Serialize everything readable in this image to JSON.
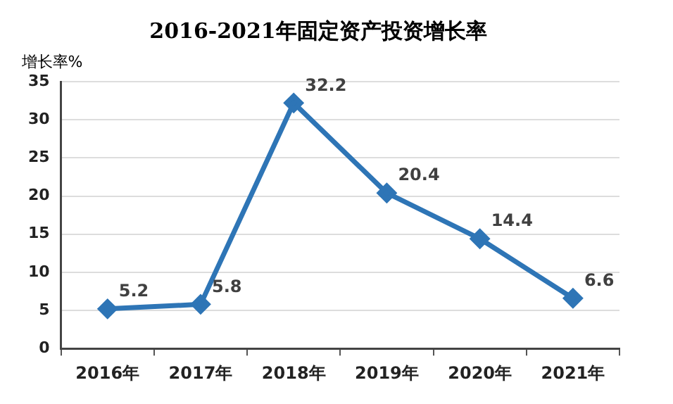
{
  "chart_data": {
    "type": "line",
    "title": "2016-2021年固定资产投资增长率",
    "ylabel": "增长率%",
    "categories": [
      "2016年",
      "2017年",
      "2018年",
      "2019年",
      "2020年",
      "2021年"
    ],
    "series": [
      {
        "color": "#2e75b6",
        "values": [
          5.2,
          5.8,
          32.2,
          20.4,
          14.4,
          6.6
        ]
      }
    ],
    "ylim": [
      0,
      35
    ],
    "yticks": [
      0,
      5,
      10,
      15,
      20,
      25,
      30,
      35
    ],
    "grid": "y",
    "legend": false,
    "marker": "diamond",
    "line_style": "solid",
    "data_labels": true
  }
}
